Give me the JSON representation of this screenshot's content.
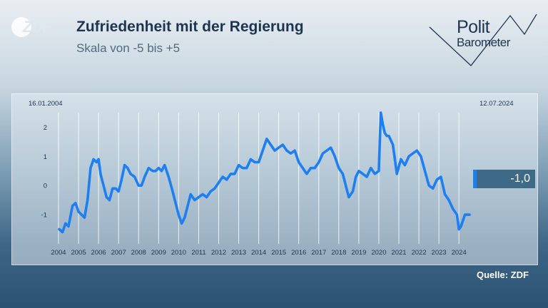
{
  "header": {
    "logo": "ZDF",
    "title": "Zufriedenheit mit der Regierung",
    "subtitle": "Skala von -5 bis +5",
    "brand_top": "Polit",
    "brand_bottom": "Barometer"
  },
  "chart": {
    "date_start": "16.01.2004",
    "date_end": "12.07.2024",
    "current_value": "-1,0",
    "source": "Quelle: ZDF"
  },
  "colors": {
    "line": "#1e7ff0",
    "navy": "#1d3550",
    "value_box": "#3f6a87"
  },
  "chart_data": {
    "type": "line",
    "title": "Zufriedenheit mit der Regierung",
    "subtitle": "Skala von -5 bis +5",
    "xlabel": "",
    "ylabel": "",
    "grid": true,
    "ylim": [
      -2,
      2.5
    ],
    "xlim": [
      2004.0,
      2024.6
    ],
    "yticks": [
      -1,
      0,
      1,
      2
    ],
    "xticks": [
      "2004",
      "2005",
      "2006",
      "2007",
      "2008",
      "2009",
      "2010",
      "2011",
      "2012",
      "2013",
      "2014",
      "2015",
      "2016",
      "2017",
      "2018",
      "2019",
      "2020",
      "2021",
      "2022",
      "2023",
      "2024"
    ],
    "series": [
      {
        "x": [
          2004.04,
          2004.2,
          2004.35,
          2004.5,
          2004.7,
          2004.85,
          2005.0,
          2005.15,
          2005.3,
          2005.45,
          2005.6,
          2005.75,
          2005.9,
          2006.0,
          2006.1,
          2006.25,
          2006.4,
          2006.55,
          2006.7,
          2006.85,
          2007.0,
          2007.15,
          2007.3,
          2007.45,
          2007.6,
          2007.8,
          2008.0,
          2008.15,
          2008.3,
          2008.5,
          2008.7,
          2008.85,
          2009.0,
          2009.15,
          2009.3,
          2009.5,
          2009.7,
          2009.85,
          2010.0,
          2010.15,
          2010.3,
          2010.45,
          2010.6,
          2010.8,
          2011.0,
          2011.2,
          2011.4,
          2011.6,
          2011.8,
          2012.0,
          2012.2,
          2012.4,
          2012.6,
          2012.8,
          2013.0,
          2013.2,
          2013.4,
          2013.6,
          2013.8,
          2014.0,
          2014.2,
          2014.4,
          2014.6,
          2014.8,
          2015.0,
          2015.2,
          2015.4,
          2015.6,
          2015.8,
          2016.0,
          2016.2,
          2016.4,
          2016.6,
          2016.8,
          2017.0,
          2017.2,
          2017.4,
          2017.6,
          2017.8,
          2018.0,
          2018.2,
          2018.35,
          2018.5,
          2018.7,
          2018.85,
          2019.0,
          2019.2,
          2019.4,
          2019.6,
          2019.8,
          2020.0,
          2020.1,
          2020.2,
          2020.3,
          2020.4,
          2020.5,
          2020.7,
          2020.9,
          2021.1,
          2021.3,
          2021.5,
          2021.7,
          2021.9,
          2022.1,
          2022.3,
          2022.5,
          2022.7,
          2022.9,
          2023.1,
          2023.3,
          2023.5,
          2023.7,
          2023.9,
          2024.0,
          2024.1,
          2024.2,
          2024.3,
          2024.4,
          2024.53
        ],
        "values": [
          -1.5,
          -1.6,
          -1.3,
          -1.4,
          -0.7,
          -0.6,
          -0.9,
          -1.0,
          -1.1,
          -0.5,
          0.6,
          0.9,
          0.8,
          0.9,
          0.4,
          0.0,
          -0.4,
          -0.5,
          -0.1,
          -0.1,
          -0.2,
          0.2,
          0.7,
          0.6,
          0.4,
          0.3,
          0.0,
          0.0,
          0.3,
          0.6,
          0.5,
          0.5,
          0.6,
          0.5,
          0.7,
          0.3,
          -0.2,
          -0.6,
          -1.0,
          -1.3,
          -1.1,
          -0.7,
          -0.3,
          -0.5,
          -0.4,
          -0.3,
          -0.4,
          -0.2,
          -0.1,
          0.1,
          0.3,
          0.2,
          0.4,
          0.4,
          0.7,
          0.6,
          0.6,
          0.9,
          0.8,
          0.8,
          1.2,
          1.6,
          1.4,
          1.2,
          1.3,
          1.4,
          1.2,
          1.1,
          1.2,
          0.8,
          0.6,
          0.4,
          0.6,
          0.6,
          0.8,
          1.1,
          1.2,
          1.3,
          1.0,
          0.6,
          0.4,
          0.0,
          -0.4,
          -0.2,
          0.3,
          0.5,
          0.4,
          0.3,
          0.6,
          0.4,
          0.5,
          2.5,
          2.1,
          1.8,
          1.7,
          1.7,
          1.4,
          0.4,
          0.9,
          0.7,
          1.0,
          1.1,
          1.2,
          1.0,
          0.5,
          0.0,
          -0.1,
          0.2,
          0.3,
          -0.3,
          -0.5,
          -0.8,
          -1.0,
          -1.5,
          -1.4,
          -1.2,
          -1.0,
          -1.0,
          -1.0
        ]
      }
    ]
  }
}
